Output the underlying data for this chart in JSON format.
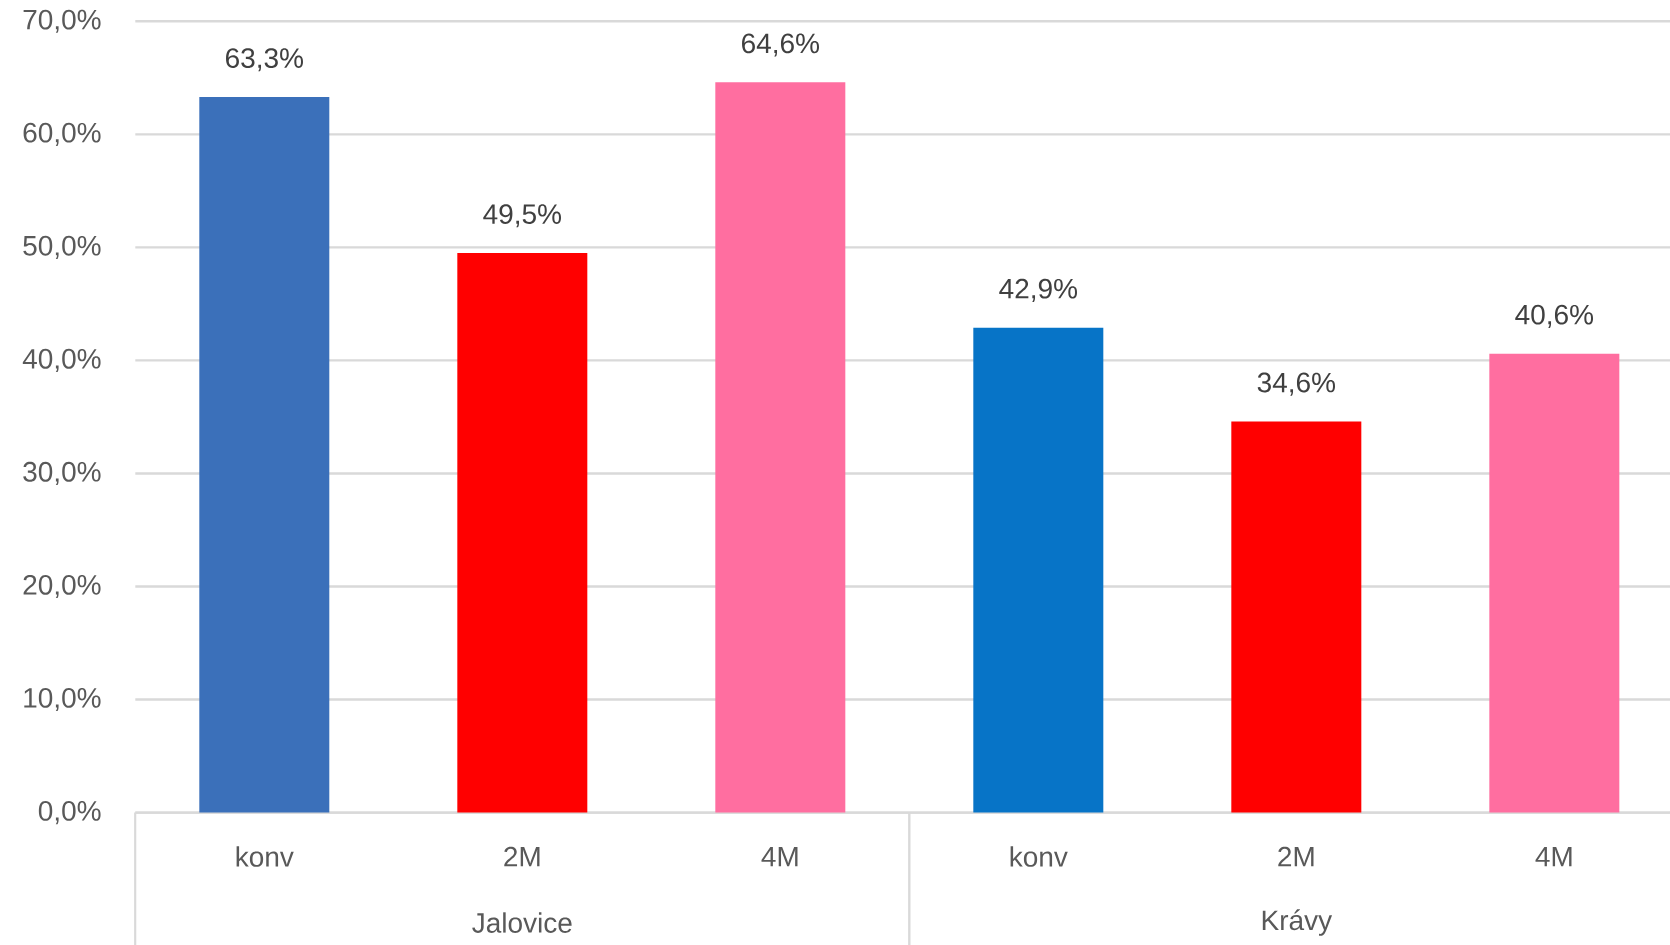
{
  "chart_data": {
    "type": "bar",
    "categories": [
      "konv",
      "2M",
      "4M",
      "konv",
      "2M",
      "4M"
    ],
    "values": [
      63.3,
      49.5,
      64.6,
      42.9,
      34.6,
      40.6
    ],
    "colors": [
      "#3b70ba",
      "#ff0000",
      "#ff6ea0",
      "#0774c7",
      "#ff0000",
      "#ff6ea0"
    ],
    "value_labels": [
      "63,3%",
      "49,5%",
      "64,6%",
      "42,9%",
      "34,6%",
      "40,6%"
    ],
    "ylim": [
      0,
      70
    ],
    "yticks": [
      {
        "value": 0,
        "label": "0,0%"
      },
      {
        "value": 10,
        "label": "10,0%"
      },
      {
        "value": 20,
        "label": "20,0%"
      },
      {
        "value": 30,
        "label": "30,0%"
      },
      {
        "value": 40,
        "label": "40,0%"
      },
      {
        "value": 50,
        "label": "50,0%"
      },
      {
        "value": 60,
        "label": "60,0%"
      },
      {
        "value": 70,
        "label": "70,0%"
      }
    ],
    "grid": "y",
    "annotations": [
      "Jalovice",
      "Krávy"
    ]
  }
}
